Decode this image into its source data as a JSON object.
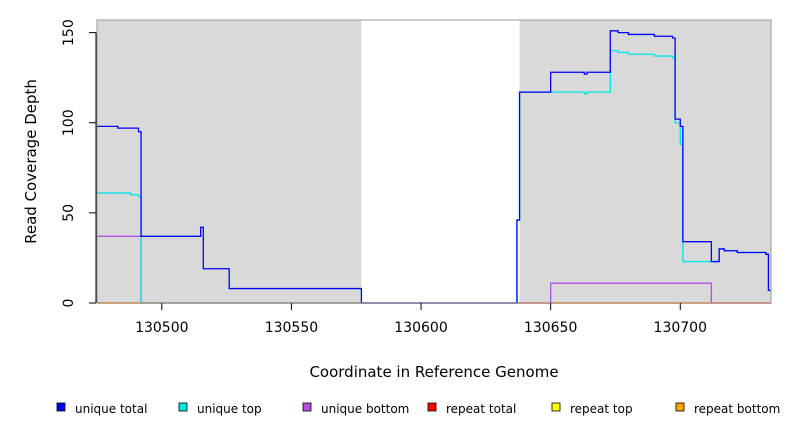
{
  "chart_data": {
    "type": "line",
    "title": "",
    "xlabel": "Coordinate in Reference Genome",
    "ylabel": "Read Coverage Depth",
    "xlim": [
      130475,
      130735
    ],
    "ylim": [
      0,
      157
    ],
    "x_ticks": [
      130500,
      130550,
      130600,
      130650,
      130700
    ],
    "y_ticks": [
      0,
      50,
      100,
      150
    ],
    "grid": false,
    "background": {
      "shaded_color": "#d9d9d9",
      "unshaded_color": "#ffffff",
      "shaded_regions": [
        [
          130475,
          130577
        ],
        [
          130638,
          130735
        ]
      ]
    },
    "legend_placement": "bottom",
    "series": [
      {
        "name": "unique total",
        "color": "#0000ff",
        "x": [
          130475,
          130483,
          130488,
          130491,
          130492,
          130515,
          130516,
          130526,
          130577,
          130637,
          130638,
          130650,
          130663,
          130664,
          130673,
          130676,
          130680,
          130690,
          130697,
          130698,
          130700,
          130701,
          130712,
          130715,
          130717,
          130722,
          130733,
          130734,
          130735
        ],
        "y": [
          98,
          97,
          97,
          95,
          37,
          42,
          19,
          8,
          0,
          46,
          117,
          128,
          127,
          128,
          151,
          150,
          149,
          148,
          147,
          102,
          98,
          34,
          23,
          30,
          29,
          28,
          27,
          7,
          7
        ]
      },
      {
        "name": "unique top",
        "color": "#00e5e5",
        "x": [
          130475,
          130483,
          130488,
          130491,
          130492,
          130577,
          130637,
          130638,
          130650,
          130663,
          130664,
          130673,
          130676,
          130680,
          130690,
          130697,
          130698,
          130700,
          130701,
          130712,
          130715,
          130717,
          130722,
          130733,
          130734,
          130735
        ],
        "y": [
          61,
          61,
          60,
          59,
          0,
          0,
          46,
          117,
          117,
          116,
          117,
          140,
          139,
          138,
          137,
          136,
          100,
          88,
          23,
          23,
          30,
          29,
          28,
          27,
          7,
          7
        ]
      },
      {
        "name": "unique bottom",
        "color": "#b44fdf",
        "x": [
          130475,
          130491,
          130492,
          130650,
          130712,
          130735
        ],
        "y": [
          37,
          37,
          0,
          11,
          0,
          0
        ]
      },
      {
        "name": "repeat total",
        "color": "#ff0000",
        "x": [
          130475,
          130735
        ],
        "y": [
          0,
          0
        ]
      },
      {
        "name": "repeat top",
        "color": "#ffff00",
        "x": [
          130475,
          130735
        ],
        "y": [
          0,
          0
        ]
      },
      {
        "name": "repeat bottom",
        "color": "#ffa500",
        "x": [
          130475,
          130735
        ],
        "y": [
          0,
          0
        ]
      }
    ]
  }
}
